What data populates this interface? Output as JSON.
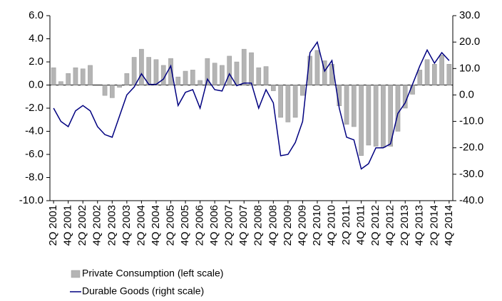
{
  "chart_data": {
    "type": "bar-line",
    "categories": [
      "2Q 2001",
      null,
      "4Q 2001",
      null,
      "2Q 2002",
      null,
      "4Q 2002",
      null,
      "2Q 2003",
      null,
      "4Q 2003",
      null,
      "2Q 2004",
      null,
      "4Q 2004",
      null,
      "2Q 2005",
      null,
      "4Q 2005",
      null,
      "2Q 2006",
      null,
      "4Q 2006",
      null,
      "2Q 2007",
      null,
      "4Q 2007",
      null,
      "2Q 2008",
      null,
      "4Q 2008",
      null,
      "2Q 2009",
      null,
      "4Q 2009",
      null,
      "2Q 2010",
      null,
      "4Q 2010",
      null,
      "2Q 2011",
      null,
      "4Q 2011",
      null,
      "2Q 2012",
      null,
      "4Q 2012",
      null,
      "2Q 2013",
      null,
      "4Q 2013",
      null,
      "2Q 2014",
      null,
      "4Q 2014"
    ],
    "series": [
      {
        "name": "Private Consumption (left scale)",
        "type": "bar",
        "color": "#b4b4b4",
        "values": [
          1.5,
          0.3,
          1.0,
          1.5,
          1.4,
          1.7,
          0.0,
          -0.9,
          -1.1,
          -0.2,
          1.0,
          2.4,
          3.1,
          2.4,
          2.2,
          1.7,
          2.3,
          0.7,
          1.2,
          1.3,
          0.4,
          2.3,
          1.9,
          1.7,
          2.5,
          2.0,
          3.1,
          2.8,
          1.5,
          1.6,
          -0.5,
          -2.8,
          -3.2,
          -2.8,
          -0.9,
          2.5,
          3.0,
          2.1,
          1.8,
          -1.8,
          -3.4,
          -3.6,
          -6.1,
          -5.2,
          -5.3,
          -5.4,
          -5.3,
          -4.0,
          -2.0,
          -0.8,
          1.3,
          2.2,
          1.8,
          2.6,
          1.8
        ]
      },
      {
        "name": "Durable Goods (right scale)",
        "type": "line",
        "axis": "y2",
        "color": "#000080",
        "values": [
          -5,
          -10,
          -12,
          -6,
          -4,
          -6,
          -12,
          -15,
          -16,
          -8,
          0,
          3,
          8,
          4,
          4,
          6,
          11,
          -4,
          1,
          2,
          -5,
          6,
          2,
          1.5,
          8,
          3.5,
          4.5,
          4.5,
          -5,
          2,
          -3,
          -23,
          -22.5,
          -18,
          -10,
          16,
          20,
          9,
          13,
          -5,
          -16,
          -17,
          -28,
          -26,
          -20,
          -20,
          -18.5,
          -7,
          -3,
          4,
          11,
          17,
          12,
          16,
          13
        ]
      }
    ],
    "ylim": [
      -10,
      6
    ],
    "yticks": [
      {
        "value": -10,
        "label": "-10.0"
      },
      {
        "value": -8,
        "label": "-8.0"
      },
      {
        "value": -6,
        "label": "-6.0"
      },
      {
        "value": -4,
        "label": "-4.0"
      },
      {
        "value": -2,
        "label": "-2.0"
      },
      {
        "value": 0,
        "label": "0.0"
      },
      {
        "value": 2,
        "label": "2.0"
      },
      {
        "value": 4,
        "label": "4.0"
      },
      {
        "value": 6,
        "label": "6.0"
      }
    ],
    "y2lim": [
      -40,
      30
    ],
    "y2ticks": [
      {
        "value": -40,
        "label": "-40.0"
      },
      {
        "value": -30,
        "label": "-30.0"
      },
      {
        "value": -20,
        "label": "-20.0"
      },
      {
        "value": -10,
        "label": "-10.0"
      },
      {
        "value": 0,
        "label": "0.0"
      },
      {
        "value": 10,
        "label": "10.0"
      },
      {
        "value": 20,
        "label": "20.0"
      },
      {
        "value": 30,
        "label": "30.0"
      }
    ],
    "grid": false,
    "legend": "bottom-left"
  }
}
